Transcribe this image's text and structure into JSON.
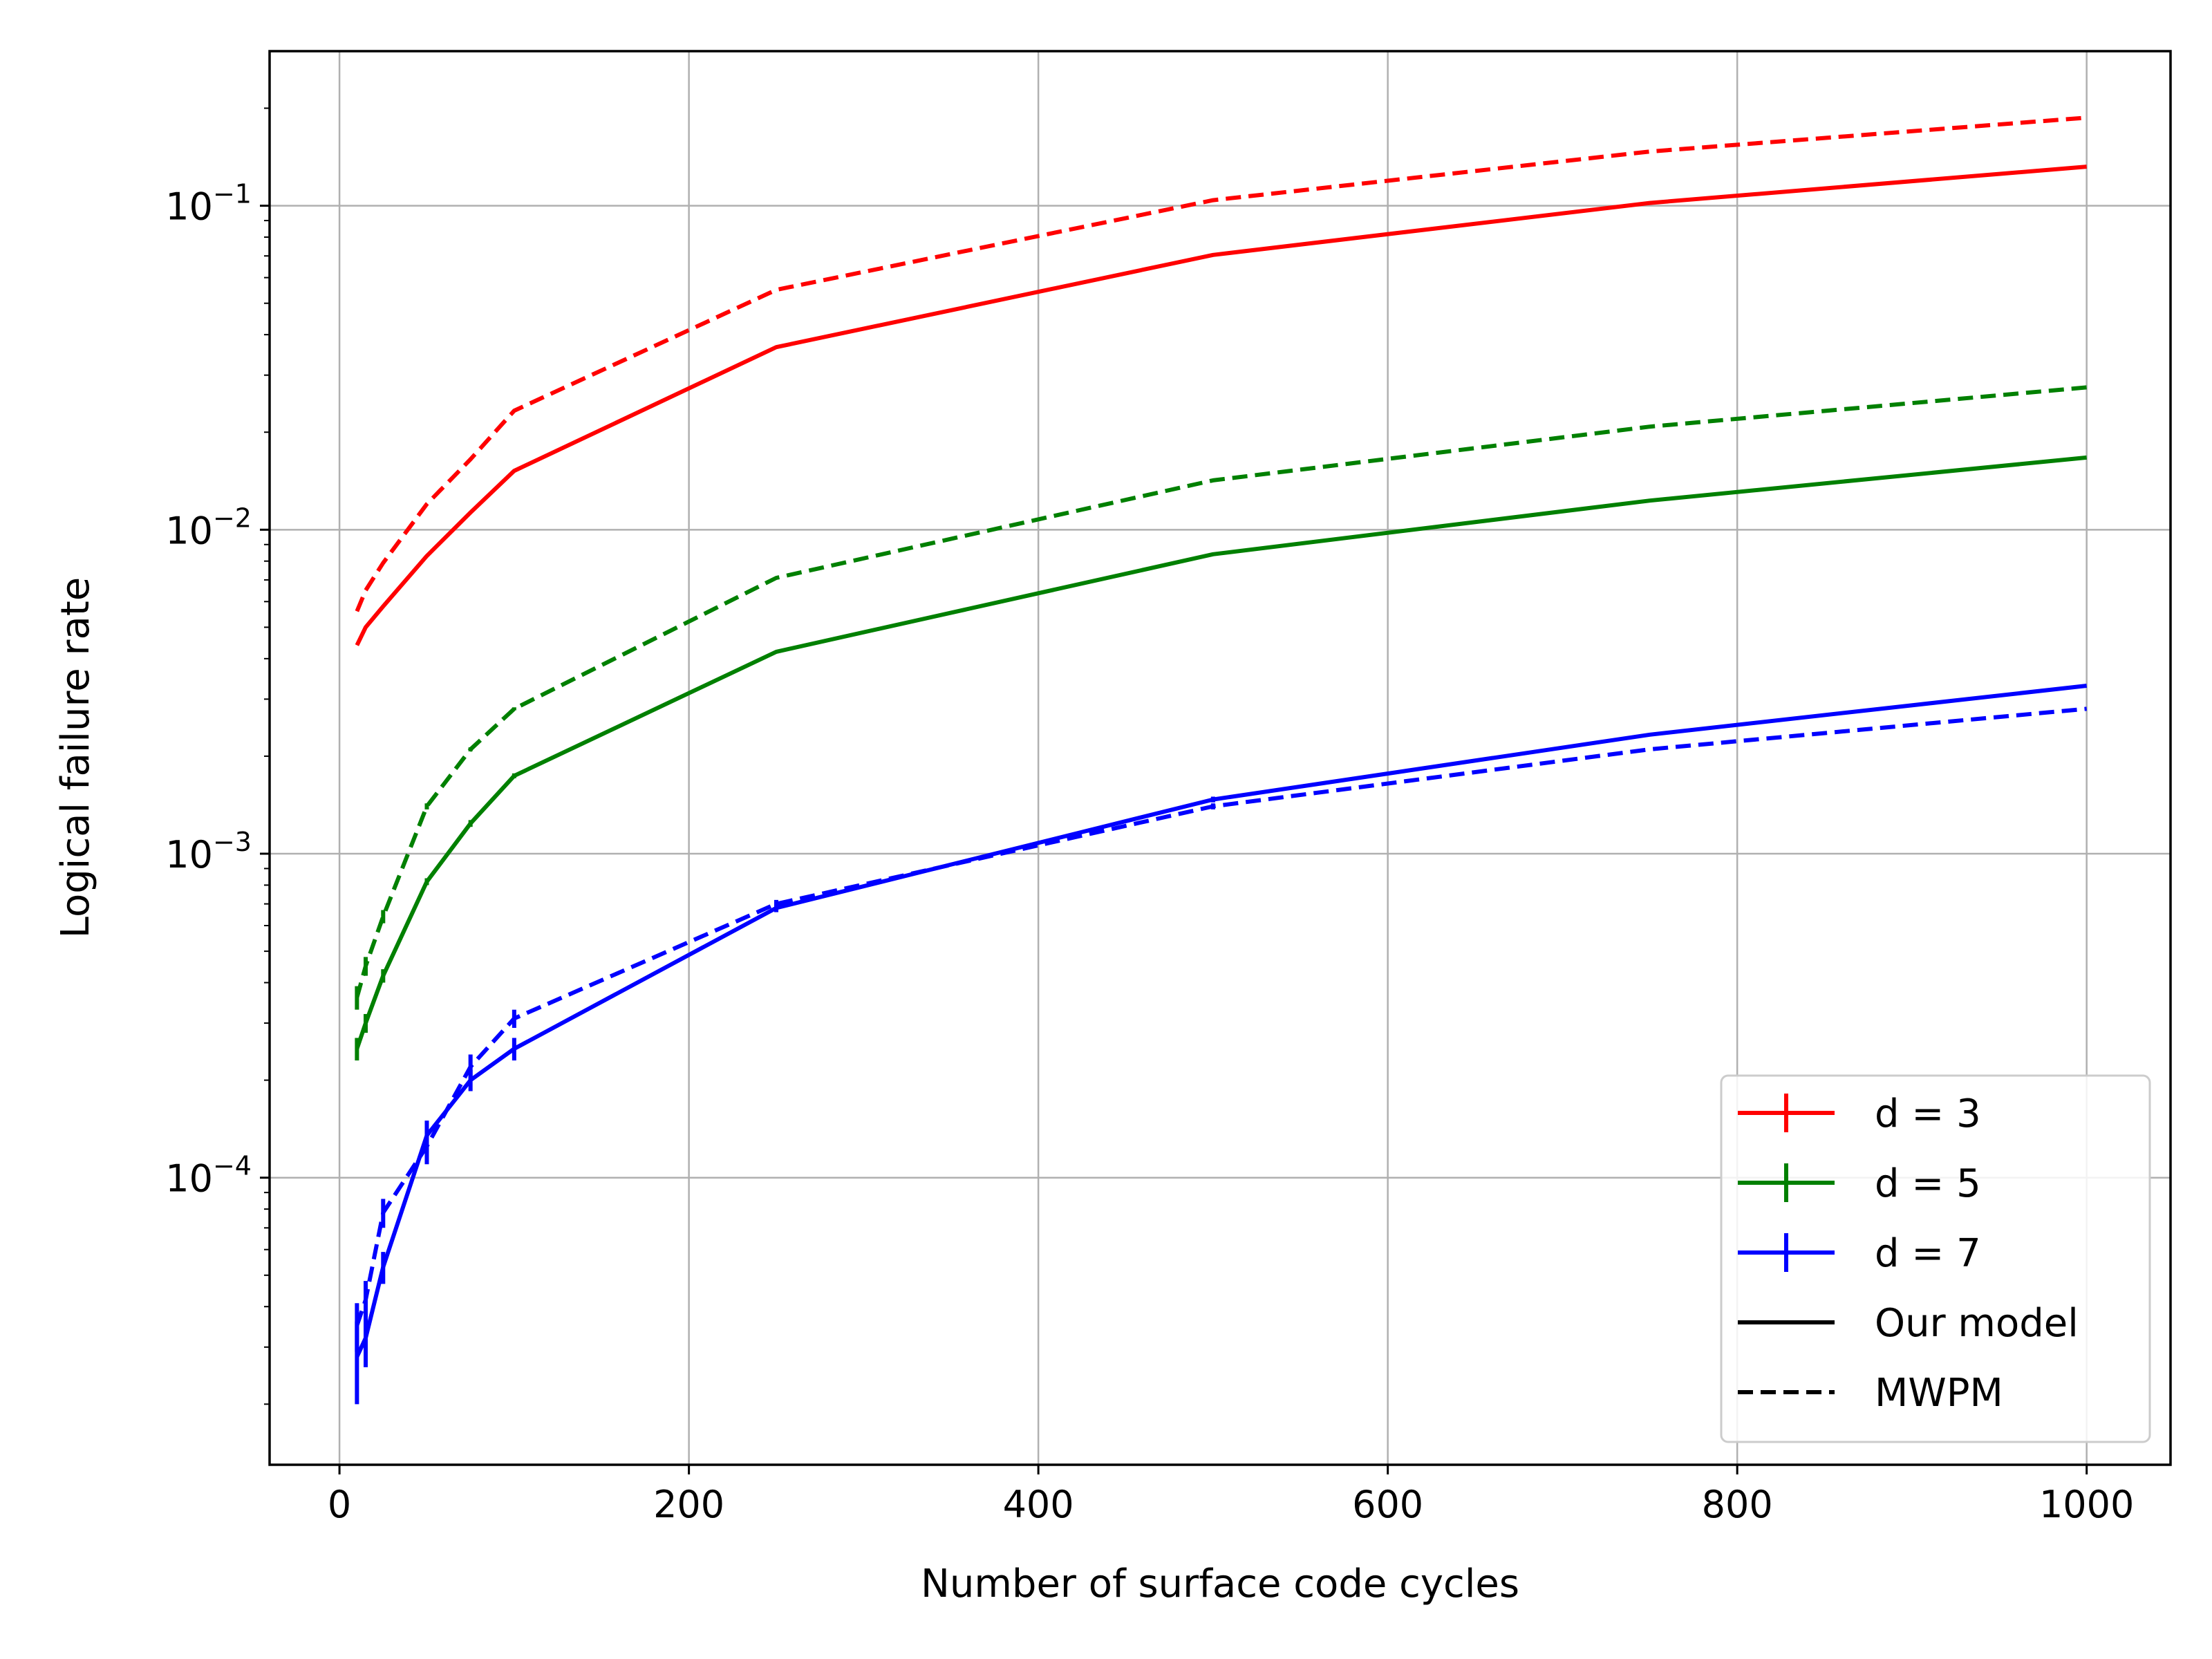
{
  "chart_data": {
    "type": "line",
    "xlabel": "Number of surface code cycles",
    "ylabel": "Logical failure rate",
    "x_scale": "linear",
    "y_scale": "log",
    "xlim": [
      -40,
      1048
    ],
    "ylim": [
      1.3e-05,
      0.3
    ],
    "x_ticks": [
      0,
      200,
      400,
      600,
      800,
      1000
    ],
    "x_tick_labels": [
      "0",
      "200",
      "400",
      "600",
      "800",
      "1000"
    ],
    "y_ticks": [
      0.0001,
      0.001,
      0.01,
      0.1
    ],
    "y_tick_labels": [
      {
        "base": "10",
        "exp": "−4"
      },
      {
        "base": "10",
        "exp": "−3"
      },
      {
        "base": "10",
        "exp": "−2"
      },
      {
        "base": "10",
        "exp": "−1"
      }
    ],
    "grid": true,
    "legend_position": "lower-right",
    "legend": [
      {
        "label": "d = 3",
        "color": "#ff0000",
        "style": "errorbar"
      },
      {
        "label": "d = 5",
        "color": "#008000",
        "style": "errorbar"
      },
      {
        "label": "d = 7",
        "color": "#0000ff",
        "style": "errorbar"
      },
      {
        "label": "Our model",
        "color": "#000000",
        "style": "solid"
      },
      {
        "label": "MWPM",
        "color": "#000000",
        "style": "dashed"
      }
    ],
    "x": [
      10,
      15,
      25,
      50,
      75,
      100,
      250,
      500,
      750,
      1000
    ],
    "series": [
      {
        "distance": "d = 3",
        "method": "Our model",
        "color": "#ff0000",
        "dash": "solid",
        "values": [
          0.0044,
          0.005,
          0.0058,
          0.0083,
          0.0113,
          0.0152,
          0.0366,
          0.0705,
          0.102,
          0.132
        ],
        "errors": [
          0,
          0,
          0,
          0,
          0,
          0,
          0,
          0,
          0,
          0
        ]
      },
      {
        "distance": "d = 3",
        "method": "MWPM",
        "color": "#ff0000",
        "dash": "dashed",
        "values": [
          0.0056,
          0.0065,
          0.0079,
          0.012,
          0.0165,
          0.0233,
          0.055,
          0.104,
          0.147,
          0.187
        ],
        "errors": [
          0,
          0,
          0,
          0,
          0,
          0,
          0,
          0,
          0,
          0
        ]
      },
      {
        "distance": "d = 5",
        "method": "Our model",
        "color": "#008000",
        "dash": "solid",
        "values": [
          0.00025,
          0.0003,
          0.00042,
          0.00082,
          0.00124,
          0.00174,
          0.0042,
          0.0084,
          0.0123,
          0.0167
        ],
        "errors": [
          2e-05,
          2e-05,
          2e-05,
          2e-05,
          3e-05,
          3e-05,
          0,
          0,
          0,
          0
        ]
      },
      {
        "distance": "d = 5",
        "method": "MWPM",
        "color": "#008000",
        "dash": "dashed",
        "values": [
          0.00036,
          0.00045,
          0.00064,
          0.0014,
          0.0021,
          0.0028,
          0.0071,
          0.0142,
          0.0208,
          0.0275
        ],
        "errors": [
          3e-05,
          3e-05,
          3e-05,
          3e-05,
          3e-05,
          3e-05,
          0,
          0,
          0,
          0
        ]
      },
      {
        "distance": "d = 7",
        "method": "Our model",
        "color": "#0000ff",
        "dash": "solid",
        "values": [
          2.8e-05,
          3.2e-05,
          5.3e-05,
          0.000135,
          0.0002,
          0.00025,
          0.00068,
          0.00147,
          0.00233,
          0.0033
        ],
        "errors": [
          8e-06,
          6e-06,
          6e-06,
          1.5e-05,
          1.5e-05,
          2e-05,
          2e-05,
          3e-05,
          0,
          0
        ]
      },
      {
        "distance": "d = 7",
        "method": "MWPM",
        "color": "#0000ff",
        "dash": "dashed",
        "values": [
          3.5e-05,
          4.2e-05,
          7.8e-05,
          0.000125,
          0.00022,
          0.00031,
          0.0007,
          0.0014,
          0.0021,
          0.0028
        ],
        "errors": [
          6e-06,
          6e-06,
          8e-06,
          1.5e-05,
          2e-05,
          2e-05,
          2e-05,
          3e-05,
          0,
          0
        ]
      }
    ]
  }
}
